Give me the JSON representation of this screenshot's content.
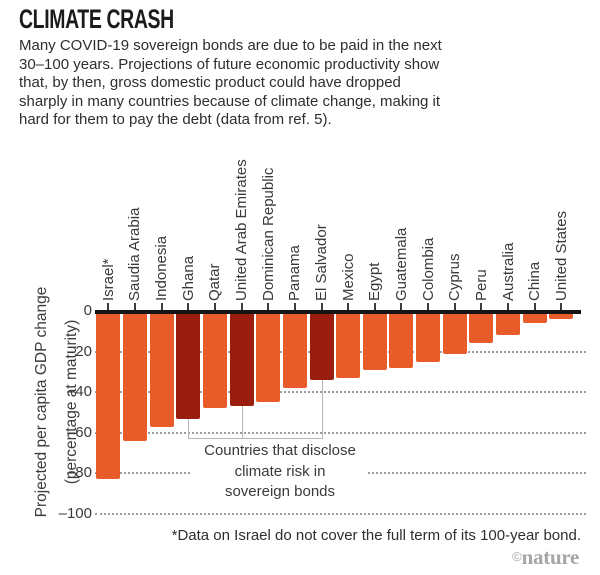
{
  "header": {
    "title": "CLIMATE CRASH",
    "description_lines": [
      "Many COVID-19 sovereign bonds are due to be paid in the next",
      "30–100 years. Projections of future economic productivity show",
      "that, by then, gross domestic product could have dropped",
      "sharply in many countries because of climate change, making it",
      "hard for them to pay the debt (data from ref. 5)."
    ]
  },
  "chart_data": {
    "type": "bar",
    "orientation": "vertical-negative",
    "ylabel_line1": "Projected per capita GDP change",
    "ylabel_line2": "(percentage at maturity)",
    "ylim": [
      -100,
      0
    ],
    "grid": "dotted-horizontal",
    "y_ticks": [
      {
        "label": "0",
        "value": 0
      },
      {
        "label": "–20",
        "value": -20
      },
      {
        "label": "–40",
        "value": -40
      },
      {
        "label": "–60",
        "value": -60
      },
      {
        "label": "–80",
        "value": -80
      },
      {
        "label": "–100",
        "value": -100
      }
    ],
    "categories": [
      "Israel*",
      "Saudia Arabia",
      "Indonesia",
      "Ghana",
      "Qatar",
      "United Arab Emirates",
      "Dominican Republic",
      "Panama",
      "El Salvador",
      "Mexico",
      "Egypt",
      "Guatemala",
      "Colombia",
      "Cyprus",
      "Peru",
      "Australia",
      "China",
      "United States"
    ],
    "values": [
      -83,
      -64,
      -57,
      -53,
      -48,
      -47,
      -45,
      -38,
      -34,
      -33,
      -29,
      -28,
      -25,
      -21,
      -16,
      -12,
      -6,
      -4
    ],
    "bar_color": "#e75c28",
    "highlight_color": "#9a1e10",
    "highlight_indices": [
      3,
      5,
      8
    ],
    "highlight_annotation_lines": [
      "Countries that disclose",
      "climate risk in",
      "sovereign bonds"
    ]
  },
  "footnote": "*Data on Israel do not cover the full term of its 100-year bond.",
  "credit": {
    "copyright_symbol": "©",
    "brand": "nature"
  }
}
